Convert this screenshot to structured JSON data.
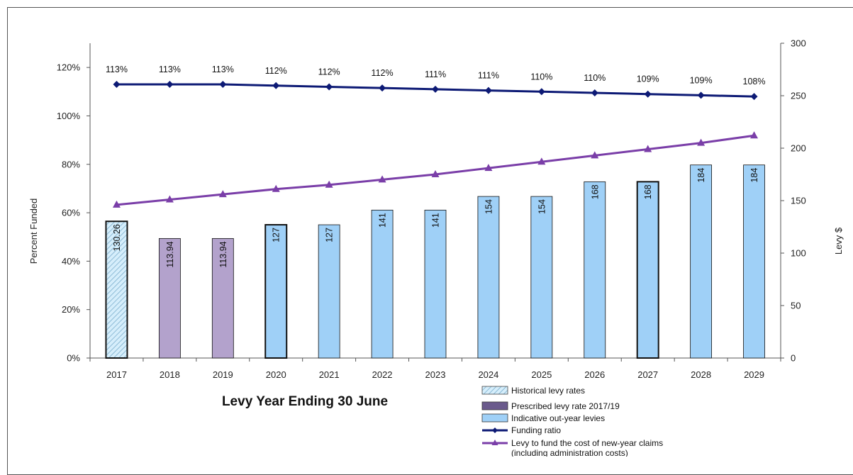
{
  "chart_data": {
    "type": "bar",
    "title": "",
    "xlabel": "Levy Year Ending 30 June",
    "ylabel": "Percent Funded",
    "y2label": "Levy $",
    "categories": [
      "2017",
      "2018",
      "2019",
      "2020",
      "2021",
      "2022",
      "2023",
      "2024",
      "2025",
      "2026",
      "2027",
      "2028",
      "2029"
    ],
    "ylim": [
      0,
      130
    ],
    "y_ticks": [
      "0%",
      "20%",
      "40%",
      "60%",
      "80%",
      "100%",
      "120%"
    ],
    "y2lim": [
      0,
      300
    ],
    "y2_ticks": [
      "0",
      "50",
      "100",
      "150",
      "200",
      "250",
      "300"
    ],
    "grid": false,
    "legend_position": "bottom-right",
    "series": [
      {
        "name": "Historical levy rates",
        "kind": "bar",
        "axis": "right",
        "pattern": "hatched",
        "color": "#bfe3f7",
        "values": [
          130.26,
          null,
          null,
          null,
          null,
          null,
          null,
          null,
          null,
          null,
          null,
          null,
          null
        ],
        "labels": [
          "130.26",
          "",
          "",
          "",
          "",
          "",
          "",
          "",
          "",
          "",
          "",
          "",
          ""
        ]
      },
      {
        "name": "Prescribed levy rate 2017/19",
        "kind": "bar",
        "axis": "right",
        "color": "#b3a2cc",
        "values": [
          null,
          113.94,
          113.94,
          null,
          null,
          null,
          null,
          null,
          null,
          null,
          null,
          null,
          null
        ],
        "labels": [
          "",
          "113.94",
          "113.94",
          "",
          "",
          "",
          "",
          "",
          "",
          "",
          "",
          "",
          ""
        ]
      },
      {
        "name": "Indicative out-year levies",
        "kind": "bar",
        "axis": "right",
        "color": "#9fd0f7",
        "values": [
          null,
          null,
          null,
          127,
          127,
          141,
          141,
          154,
          154,
          168,
          168,
          184,
          184
        ],
        "labels": [
          "",
          "",
          "",
          "127",
          "127",
          "141",
          "141",
          "154",
          "154",
          "168",
          "168",
          "184",
          "184"
        ]
      },
      {
        "name": "Funding ratio",
        "kind": "line",
        "axis": "left",
        "color": "#0d1a75",
        "marker": "diamond",
        "values": [
          113,
          113,
          113,
          112.5,
          112,
          111.5,
          111,
          110.5,
          110,
          109.5,
          109,
          108.5,
          108
        ],
        "labels": [
          "113%",
          "113%",
          "113%",
          "112%",
          "112%",
          "112%",
          "111%",
          "111%",
          "110%",
          "110%",
          "109%",
          "109%",
          "108%"
        ]
      },
      {
        "name": "Levy to fund the cost of new-year claims (including administration costs)",
        "kind": "line",
        "axis": "right",
        "color": "#7a3ea8",
        "marker": "triangle",
        "values": [
          146,
          151,
          156,
          161,
          165,
          170,
          175,
          181,
          187,
          193,
          199,
          205,
          212
        ]
      }
    ],
    "legend": [
      "Historical levy rates",
      "Prescribed levy rate 2017/19",
      "Indicative out-year levies",
      "Funding ratio",
      "Levy to fund the cost of new-year claims",
      "(including administration costs)"
    ]
  }
}
